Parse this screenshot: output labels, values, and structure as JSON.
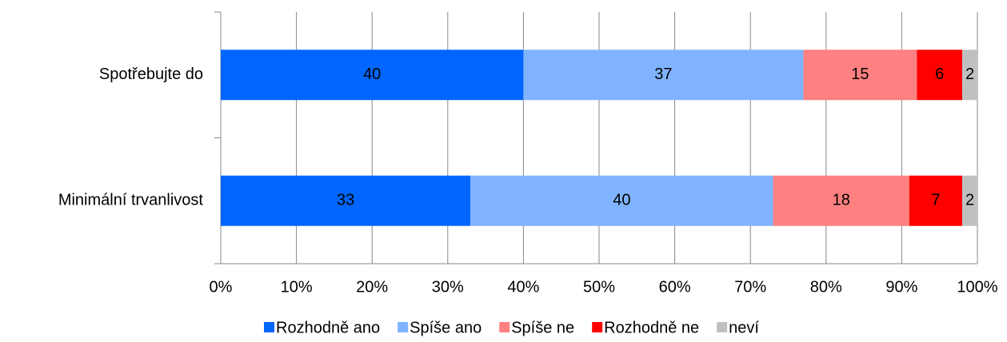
{
  "chart_data": {
    "type": "stacked_barh",
    "categories": [
      "Spotřebujte do",
      "Minimální trvanlivost"
    ],
    "series": [
      {
        "name": "Rozhodně ano",
        "color": "#0066ff",
        "values": [
          40,
          33
        ]
      },
      {
        "name": "Spíše ano",
        "color": "#80b3ff",
        "values": [
          37,
          40
        ]
      },
      {
        "name": "Spíše ne",
        "color": "#ff8080",
        "values": [
          15,
          18
        ]
      },
      {
        "name": "Rozhodně ne",
        "color": "#ff0000",
        "values": [
          6,
          7
        ]
      },
      {
        "name": "neví",
        "color": "#c0c0c0",
        "values": [
          2,
          2
        ]
      }
    ],
    "xlim": [
      0,
      100
    ],
    "xticks": [
      {
        "value": 0,
        "label": "0%"
      },
      {
        "value": 10,
        "label": "10%"
      },
      {
        "value": 20,
        "label": "20%"
      },
      {
        "value": 30,
        "label": "30%"
      },
      {
        "value": 40,
        "label": "40%"
      },
      {
        "value": 50,
        "label": "50%"
      },
      {
        "value": 60,
        "label": "60%"
      },
      {
        "value": 70,
        "label": "70%"
      },
      {
        "value": 80,
        "label": "80%"
      },
      {
        "value": 90,
        "label": "90%"
      },
      {
        "value": 100,
        "label": "100%"
      }
    ],
    "grid": true,
    "legend": "bottom"
  }
}
